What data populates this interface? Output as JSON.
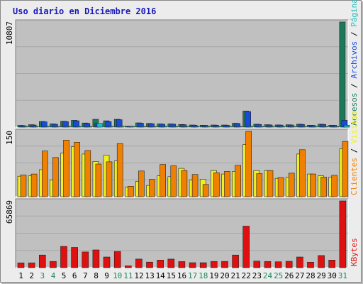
{
  "title": "Uso diario en Diciembre 2016",
  "colors": {
    "title": "#1a1ab8",
    "panel_bg": "#c0c0c0",
    "accesos": "#1a7a5a",
    "archivos": "#1a4ad8",
    "paginas": "#20c0c0",
    "visitas": "#f0f020",
    "clientes": "#f08000",
    "kbytes": "#e01010",
    "weekday": "#000000",
    "weekend": "#1a8a5a"
  },
  "chart_data": [
    {
      "type": "bar",
      "panel": "hits",
      "categories": [
        "1",
        "2",
        "3",
        "4",
        "5",
        "6",
        "7",
        "8",
        "9",
        "10",
        "11",
        "12",
        "13",
        "14",
        "15",
        "16",
        "17",
        "18",
        "19",
        "20",
        "21",
        "22",
        "23",
        "24",
        "25",
        "26",
        "27",
        "28",
        "29",
        "30",
        "31"
      ],
      "weekend_days": [
        "3",
        "4",
        "10",
        "11",
        "17",
        "18",
        "24",
        "25",
        "31"
      ],
      "y_max_label": "10807",
      "ylim": [
        0,
        10807
      ],
      "label_parts": [
        {
          "text": "Accesos",
          "color": "#1a7a5a"
        },
        {
          "text": " / ",
          "color": "#000000"
        },
        {
          "text": "Archivos",
          "color": "#1a4ad8"
        },
        {
          "text": " / ",
          "color": "#000000"
        },
        {
          "text": "Páginas",
          "color": "#20c0c0"
        }
      ],
      "series": [
        {
          "name": "Accesos",
          "color": "#1a7a5a",
          "values": [
            180,
            250,
            580,
            330,
            600,
            700,
            420,
            800,
            650,
            800,
            90,
            440,
            380,
            330,
            330,
            270,
            220,
            200,
            220,
            220,
            400,
            1650,
            300,
            250,
            230,
            240,
            300,
            200,
            300,
            200,
            10807
          ]
        },
        {
          "name": "Archivos",
          "color": "#1a4ad8",
          "values": [
            150,
            220,
            540,
            300,
            560,
            650,
            390,
            380,
            560,
            760,
            80,
            400,
            350,
            300,
            300,
            250,
            200,
            180,
            200,
            200,
            380,
            1600,
            280,
            230,
            210,
            220,
            280,
            180,
            280,
            180,
            700
          ]
        },
        {
          "name": "Páginas",
          "color": "#20c0c0",
          "values": [
            30,
            40,
            50,
            40,
            60,
            70,
            50,
            380,
            60,
            80,
            20,
            50,
            40,
            40,
            40,
            30,
            30,
            30,
            30,
            30,
            40,
            50,
            30,
            30,
            30,
            30,
            40,
            30,
            40,
            30,
            200
          ]
        }
      ]
    },
    {
      "type": "bar",
      "panel": "visits",
      "categories": [
        "1",
        "2",
        "3",
        "4",
        "5",
        "6",
        "7",
        "8",
        "9",
        "10",
        "11",
        "12",
        "13",
        "14",
        "15",
        "16",
        "17",
        "18",
        "19",
        "20",
        "21",
        "22",
        "23",
        "24",
        "25",
        "26",
        "27",
        "28",
        "29",
        "30",
        "31"
      ],
      "y_max_label": "150",
      "ylim": [
        0,
        150
      ],
      "label_parts": [
        {
          "text": "Clientes",
          "color": "#f08000"
        },
        {
          "text": " / ",
          "color": "#000000"
        },
        {
          "text": "Visitas",
          "color": "#f0f020"
        }
      ],
      "series": [
        {
          "name": "Visitas",
          "color": "#f0f020",
          "values": [
            47,
            48,
            62,
            38,
            100,
            115,
            98,
            81,
            95,
            82,
            22,
            35,
            26,
            48,
            46,
            65,
            38,
            40,
            60,
            52,
            58,
            120,
            60,
            60,
            42,
            45,
            98,
            52,
            48,
            45,
            110
          ]
        },
        {
          "name": "Clientes",
          "color": "#f08000",
          "values": [
            50,
            52,
            105,
            90,
            130,
            125,
            106,
            75,
            80,
            122,
            24,
            59,
            40,
            74,
            71,
            60,
            51,
            28,
            55,
            58,
            72,
            150,
            53,
            60,
            44,
            54,
            108,
            52,
            45,
            49,
            127
          ]
        }
      ]
    },
    {
      "type": "bar",
      "panel": "kbytes",
      "categories": [
        "1",
        "2",
        "3",
        "4",
        "5",
        "6",
        "7",
        "8",
        "9",
        "10",
        "11",
        "12",
        "13",
        "14",
        "15",
        "16",
        "17",
        "18",
        "19",
        "20",
        "21",
        "22",
        "23",
        "24",
        "25",
        "26",
        "27",
        "28",
        "29",
        "30",
        "31"
      ],
      "y_max_label": "65869",
      "ylim": [
        0,
        65869
      ],
      "label_parts": [
        {
          "text": "KBytes",
          "color": "#e01010"
        }
      ],
      "series": [
        {
          "name": "KBytes",
          "color": "#e01010",
          "values": [
            4800,
            4800,
            12500,
            6200,
            21000,
            20000,
            15500,
            17500,
            10500,
            16000,
            1800,
            8500,
            5500,
            7500,
            8500,
            6000,
            4900,
            4900,
            6200,
            6200,
            12500,
            41000,
            6500,
            6200,
            5800,
            6300,
            10500,
            5400,
            12000,
            7500,
            65869
          ]
        }
      ]
    }
  ]
}
